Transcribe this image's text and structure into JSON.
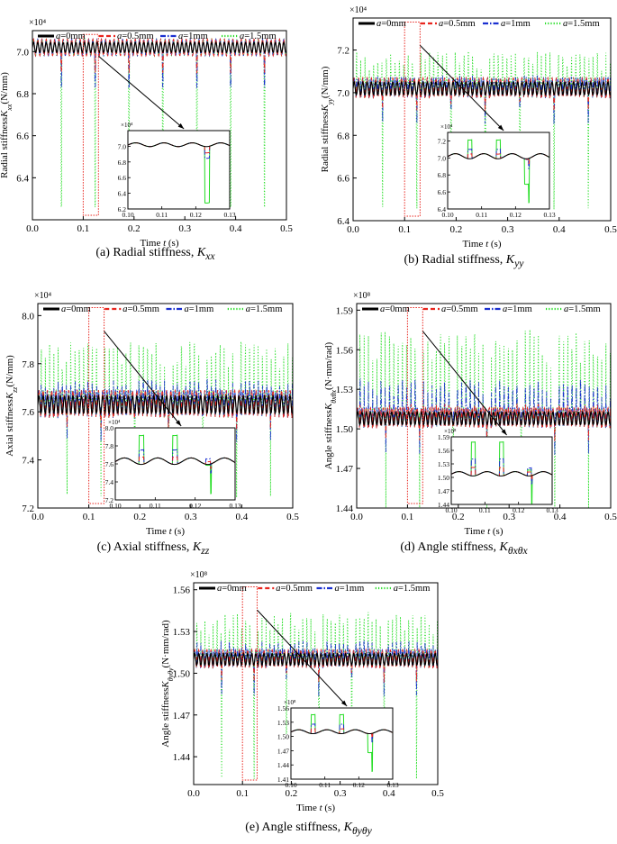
{
  "chart_data": [
    {
      "type": "line",
      "id": "a",
      "caption_prefix": "(a) Radial stiffness, ",
      "caption_symbol": "K",
      "caption_sub": "xx",
      "ylabel_prefix": "Radial stiffness",
      "ylabel_symbol": "K",
      "ylabel_sub": "xx",
      "ylabel_suffix": "(N/mm)",
      "xlabel_prefix": "Time ",
      "xlabel_symbol": "t",
      "xlabel_suffix": " (s)",
      "exponent": "×10⁴",
      "xlim": [
        0,
        0.5
      ],
      "ylim": [
        6.2,
        7.1
      ],
      "xticks": [
        "0.0",
        "0.1",
        "0.2",
        "0.3",
        "0.4",
        "0.5"
      ],
      "yticks": [
        "6.4",
        "6.6",
        "6.8",
        "7.0"
      ],
      "baseline": 7.02,
      "band": 0.04,
      "spike_period": 0.0667,
      "spike_phase": 0.1227,
      "spike_ripple": 0.00835,
      "ripple_amp": 0.0,
      "spike_depth": {
        "a0": 0.0,
        "a05": 0.08,
        "a1": 0.15,
        "a15": 0.72
      },
      "spike_times_shown": [
        0.1227,
        0.189,
        0.256,
        0.323,
        0.39,
        0.457
      ],
      "inset": {
        "exponent": "×10⁴",
        "xlim": [
          0.1,
          0.13
        ],
        "ylim": [
          6.2,
          7.2
        ],
        "xticks": [
          "0.10",
          "0.11",
          "0.12",
          "0.13"
        ],
        "yticks": [
          "6.2",
          "6.4",
          "6.6",
          "6.8",
          "7.0"
        ]
      }
    },
    {
      "type": "line",
      "id": "b",
      "caption_prefix": "(b) Radial stiffness, ",
      "caption_symbol": "K",
      "caption_sub": "yy",
      "ylabel_prefix": "Radial stiffness",
      "ylabel_symbol": "K",
      "ylabel_sub": "yy",
      "ylabel_suffix": "(N/mm)",
      "xlabel_prefix": "Time ",
      "xlabel_symbol": "t",
      "xlabel_suffix": " (s)",
      "exponent": "×10⁴",
      "xlim": [
        0,
        0.5
      ],
      "ylim": [
        6.4,
        7.35
      ],
      "xticks": [
        "0.0",
        "0.1",
        "0.2",
        "0.3",
        "0.4",
        "0.5"
      ],
      "yticks": [
        "6.4",
        "6.6",
        "6.8",
        "7.0",
        "7.2"
      ],
      "baseline": 7.02,
      "band": 0.05,
      "spike_period": 0.0667,
      "spike_phase": 0.1227,
      "spike_ripple": 0.00835,
      "ripple_amp": 0.22,
      "spike_depth": {
        "a0": 0.0,
        "a05": 0.06,
        "a1": 0.12,
        "a15": 0.52
      },
      "spike_times_shown": [
        0.1227,
        0.189,
        0.256,
        0.323,
        0.39,
        0.457
      ],
      "inset": {
        "exponent": "×10⁴",
        "xlim": [
          0.1,
          0.13
        ],
        "ylim": [
          6.4,
          7.3
        ],
        "xticks": [
          "0.10",
          "0.11",
          "0.12",
          "0.13"
        ],
        "yticks": [
          "6.4",
          "6.6",
          "6.8",
          "7.0",
          "7.2"
        ]
      }
    },
    {
      "type": "line",
      "id": "c",
      "caption_prefix": "(c) Axial stiffness, ",
      "caption_symbol": "K",
      "caption_sub": "zz",
      "ylabel_prefix": "Axial stiffness",
      "ylabel_symbol": "K",
      "ylabel_sub": "zz",
      "ylabel_suffix": "(N/mm)",
      "xlabel_prefix": "Time ",
      "xlabel_symbol": "t",
      "xlabel_suffix": " (s)",
      "exponent": "×10⁴",
      "xlim": [
        0,
        0.5
      ],
      "ylim": [
        7.2,
        8.05
      ],
      "xticks": [
        "0.0",
        "0.1",
        "0.2",
        "0.3",
        "0.4",
        "0.5"
      ],
      "yticks": [
        "7.2",
        "7.4",
        "7.6",
        "7.8",
        "8.0"
      ],
      "baseline": 7.63,
      "band": 0.06,
      "spike_period": 0.0667,
      "spike_phase": 0.1227,
      "spike_ripple": 0.00835,
      "ripple_amp": 0.32,
      "spike_depth": {
        "a0": 0.0,
        "a05": 0.05,
        "a1": 0.1,
        "a15": 0.33
      },
      "spike_times_shown": [
        0.1227,
        0.189,
        0.256,
        0.323,
        0.39,
        0.457
      ],
      "inset": {
        "exponent": "×10⁴",
        "xlim": [
          0.1,
          0.13
        ],
        "ylim": [
          7.2,
          8.0
        ],
        "xticks": [
          "0.10",
          "0.11",
          "0.12",
          "0.13"
        ],
        "yticks": [
          "7.2",
          "7.4",
          "7.6",
          "7.8",
          "8.0"
        ]
      }
    },
    {
      "type": "line",
      "id": "d",
      "caption_prefix": "(d) Angle stiffness, ",
      "caption_symbol": "K",
      "caption_sub": "θxθx",
      "ylabel_prefix": "Angle stiffness",
      "ylabel_symbol": "K",
      "ylabel_sub": "θxθx",
      "ylabel_suffix": "(N·mm/rad)",
      "xlabel_prefix": "Time ",
      "xlabel_symbol": "t",
      "xlabel_suffix": " (s)",
      "exponent": "×10⁸",
      "xlim": [
        0,
        0.5
      ],
      "ylim": [
        1.44,
        1.595
      ],
      "xticks": [
        "0.0",
        "0.1",
        "0.2",
        "0.3",
        "0.4",
        "0.5"
      ],
      "yticks": [
        "1.44",
        "1.47",
        "1.50",
        "1.53",
        "1.56",
        "1.59"
      ],
      "baseline": 1.508,
      "band": 0.008,
      "spike_period": 0.0667,
      "spike_phase": 0.1227,
      "spike_ripple": 0.00835,
      "ripple_amp": 0.075,
      "spike_depth": {
        "a0": 0.0,
        "a05": 0.01,
        "a1": 0.02,
        "a15": 0.062
      },
      "spike_times_shown": [
        0.1227,
        0.189,
        0.256,
        0.323,
        0.39,
        0.457
      ],
      "inset": {
        "exponent": "×10⁸",
        "xlim": [
          0.1,
          0.13
        ],
        "ylim": [
          1.44,
          1.59
        ],
        "xticks": [
          "0.10",
          "0.11",
          "0.12",
          "0.13"
        ],
        "yticks": [
          "1.44",
          "1.47",
          "1.50",
          "1.53",
          "1.56",
          "1.59"
        ]
      }
    },
    {
      "type": "line",
      "id": "e",
      "caption_prefix": "(e) Angle stiffness, ",
      "caption_symbol": "K",
      "caption_sub": "θyθy",
      "ylabel_prefix": "Angle stiffness",
      "ylabel_symbol": "K",
      "ylabel_sub": "θyθy",
      "ylabel_suffix": "(N·mm/rad)",
      "xlabel_prefix": "Time ",
      "xlabel_symbol": "t",
      "xlabel_suffix": " (s)",
      "exponent": "×10⁸",
      "xlim": [
        0,
        0.5
      ],
      "ylim": [
        1.42,
        1.565
      ],
      "xticks": [
        "0.0",
        "0.1",
        "0.2",
        "0.3",
        "0.4",
        "0.5"
      ],
      "yticks": [
        "1.44",
        "1.47",
        "1.50",
        "1.53",
        "1.56"
      ],
      "baseline": 1.51,
      "band": 0.007,
      "spike_period": 0.0667,
      "spike_phase": 0.1227,
      "spike_ripple": 0.00835,
      "ripple_amp": 0.04,
      "spike_depth": {
        "a0": 0.0,
        "a05": 0.01,
        "a1": 0.02,
        "a15": 0.08
      },
      "spike_times_shown": [
        0.1227,
        0.189,
        0.256,
        0.323,
        0.39,
        0.457
      ],
      "inset": {
        "exponent": "×10⁸",
        "xlim": [
          0.1,
          0.13
        ],
        "ylim": [
          1.41,
          1.56
        ],
        "xticks": [
          "0.10",
          "0.11",
          "0.12",
          "0.13"
        ],
        "yticks": [
          "1.41",
          "1.44",
          "1.47",
          "1.50",
          "1.53",
          "1.56"
        ]
      }
    }
  ],
  "legend": {
    "placement": "top",
    "entries": [
      {
        "italic": "a",
        "text": "=0mm",
        "color": "#000000",
        "dash": "solid"
      },
      {
        "italic": "a",
        "text": "=0.5mm",
        "color": "#e8251e",
        "dash": "dashed"
      },
      {
        "italic": "a",
        "text": "=1mm",
        "color": "#1a2fd0",
        "dash": "dashdot"
      },
      {
        "italic": "a",
        "text": "=1.5mm",
        "color": "#22dd22",
        "dash": "dotted"
      }
    ]
  },
  "colors": {
    "a0": "#000000",
    "a05": "#e8251e",
    "a1": "#1a2fd0",
    "a15": "#22dd22",
    "highlight_box": "#e8251e"
  }
}
